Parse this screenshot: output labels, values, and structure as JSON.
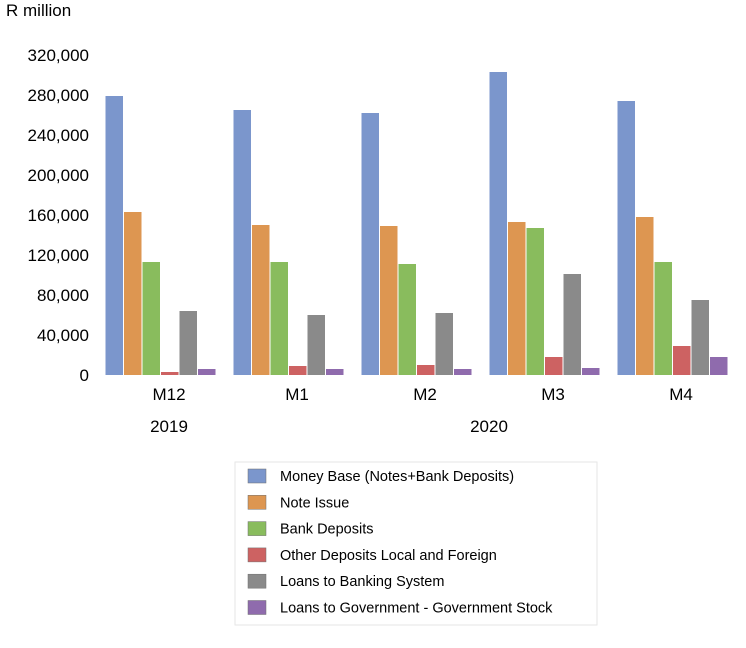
{
  "chart_data": {
    "type": "bar",
    "ylabel": "R million",
    "ylim": [
      0,
      320000
    ],
    "yticks": [
      0,
      40000,
      80000,
      120000,
      160000,
      200000,
      240000,
      280000,
      320000
    ],
    "ytick_labels": [
      "0",
      "40,000",
      "80,000",
      "120,000",
      "160,000",
      "200,000",
      "240,000",
      "280,000",
      "320,000"
    ],
    "categories": [
      "M12",
      "M1",
      "M2",
      "M3",
      "M4"
    ],
    "year_labels": [
      {
        "label": "2019",
        "category_index": 0
      },
      {
        "label": "2020",
        "category_index": 2.5
      }
    ],
    "grid": false,
    "legend_position": "bottom",
    "series": [
      {
        "name": "Money Base (Notes+Bank Deposits)",
        "color": "#7b96cc",
        "values": [
          279000,
          265000,
          262000,
          303000,
          274000
        ]
      },
      {
        "name": "Note Issue",
        "color": "#dd9651",
        "values": [
          163000,
          150000,
          149000,
          153000,
          158000
        ]
      },
      {
        "name": "Bank Deposits",
        "color": "#89bc5d",
        "values": [
          113000,
          113000,
          111000,
          147000,
          113000
        ]
      },
      {
        "name": "Other Deposits Local and Foreign",
        "color": "#cd6262",
        "values": [
          3000,
          9000,
          10000,
          18000,
          29000
        ]
      },
      {
        "name": "Loans to Banking System",
        "color": "#8a8a8a",
        "values": [
          64000,
          60000,
          62000,
          101000,
          75000
        ]
      },
      {
        "name": "Loans to Government - Government Stock",
        "color": "#8f6bad",
        "values": [
          6000,
          6000,
          6000,
          7000,
          18000
        ]
      }
    ]
  }
}
